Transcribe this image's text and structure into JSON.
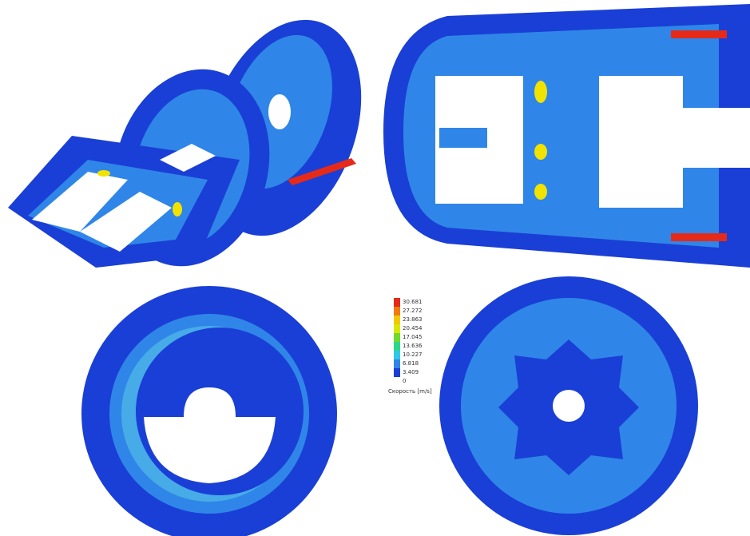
{
  "legend": {
    "levels": [
      "30.681",
      "27.272",
      "23.863",
      "20.454",
      "17.045",
      "13.636",
      "10.227",
      "6.818",
      "3.409",
      "0"
    ],
    "title": "Скорость [m/s]"
  }
}
